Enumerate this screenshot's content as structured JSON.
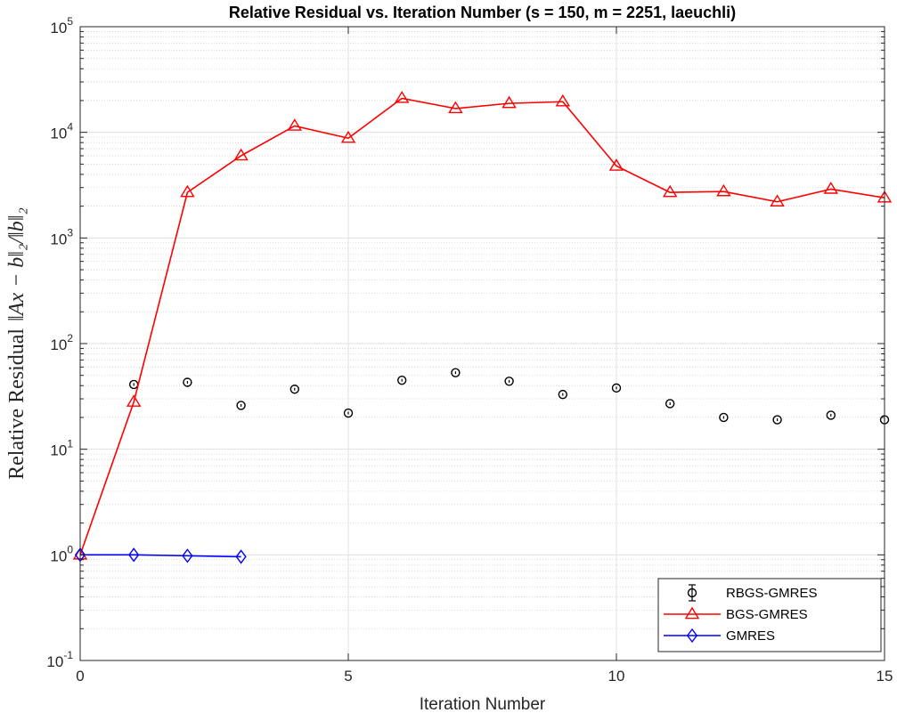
{
  "chart_data": {
    "type": "line",
    "title": "Relative Residual vs. Iteration Number (s = 150, m = 2251, laeuchli)",
    "xlabel": "Iteration Number",
    "ylabel": "Relative Residual ||Ax − b||₂/||b||₂",
    "ylabel_prefix": "Relative Residual",
    "ylabel_math": "‖Ax − b‖₂/‖b‖₂",
    "xlim": [
      0,
      15
    ],
    "ylim": [
      0.1,
      100000
    ],
    "yscale": "log",
    "grid": true,
    "x_ticks": [
      "0",
      "5",
      "10",
      "15"
    ],
    "y_ticks": [
      {
        "base": "10",
        "exp": "-1"
      },
      {
        "base": "10",
        "exp": "0"
      },
      {
        "base": "10",
        "exp": "1"
      },
      {
        "base": "10",
        "exp": "2"
      },
      {
        "base": "10",
        "exp": "3"
      },
      {
        "base": "10",
        "exp": "4"
      },
      {
        "base": "10",
        "exp": "5"
      }
    ],
    "legend_position": "bottom-right",
    "series": [
      {
        "name": "RBGS-GMRES",
        "color": "#000000",
        "marker": "circle",
        "line": false,
        "errorbar": true,
        "x": [
          1,
          2,
          3,
          4,
          5,
          6,
          7,
          8,
          9,
          10,
          11,
          12,
          13,
          14,
          15
        ],
        "y": [
          41,
          43,
          26,
          37,
          22,
          45,
          53,
          44,
          33,
          38,
          27,
          20,
          19,
          21,
          19
        ]
      },
      {
        "name": "BGS-GMRES",
        "color": "#ff0000",
        "marker": "triangle",
        "line": true,
        "x": [
          0,
          1,
          2,
          3,
          4,
          5,
          6,
          7,
          8,
          9,
          10,
          11,
          12,
          13,
          14,
          15
        ],
        "y": [
          1,
          28,
          2700,
          6000,
          11500,
          8800,
          21000,
          16800,
          18800,
          19500,
          4800,
          2700,
          2750,
          2200,
          2900,
          2400
        ]
      },
      {
        "name": "GMRES",
        "color": "#0000ff",
        "marker": "diamond",
        "line": true,
        "x": [
          0,
          1,
          2,
          3
        ],
        "y": [
          1.0,
          1.0,
          0.98,
          0.96
        ]
      }
    ]
  }
}
